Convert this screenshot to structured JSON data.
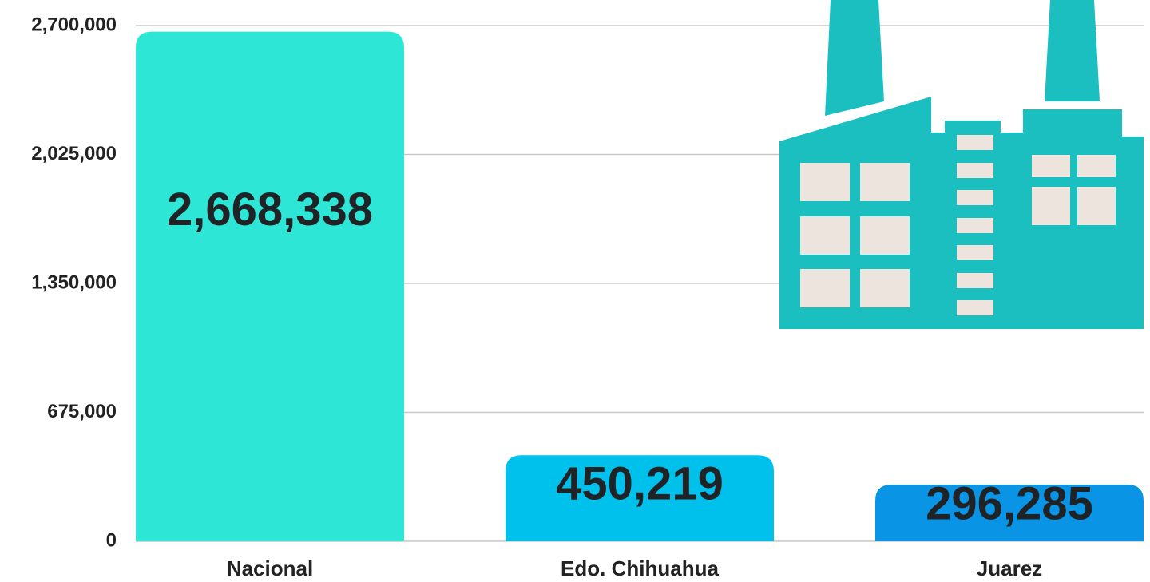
{
  "chart_data": {
    "type": "bar",
    "categories": [
      "Nacional",
      "Edo. Chihuahua",
      "Juarez"
    ],
    "values": [
      2668338,
      450219,
      296285
    ],
    "value_labels": [
      "2,668,338",
      "450,219",
      "296,285"
    ],
    "colors": [
      "#2ee6d6",
      "#00c0ec",
      "#0a94e6"
    ],
    "ylim": [
      0,
      2700000
    ],
    "yticks": [
      0,
      {
        "value": 675000,
        "label": "675,000"
      },
      {
        "value": 1350000,
        "label": "1,350,000"
      },
      {
        "value": 2025000,
        "label": "2,025,000"
      },
      {
        "value": 2700000,
        "label": "2,700,000"
      }
    ],
    "grid": true
  }
}
